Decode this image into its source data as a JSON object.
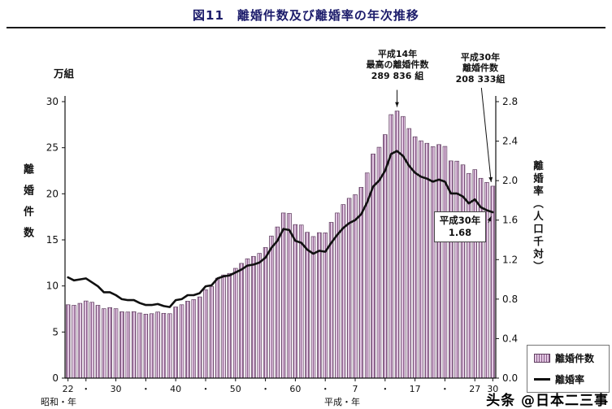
{
  "title": "図11　離婚件数及び離婚率の年次推移",
  "watermark": "头条 @日本二三事",
  "axes": {
    "left_unit": "万組",
    "left_title": "離婚件数",
    "right_title": "離婚率（人口千対）",
    "era_left": "昭和・年",
    "era_right": "平成・年"
  },
  "annotations": {
    "peak": "平成14年\n最高の離婚件数\n289 836 組",
    "latest_count": "平成30年\n離婚件数\n208 333組",
    "latest_rate": "平成30年\n1.68"
  },
  "legend": {
    "bars": "離婚件数",
    "line": "離婚率"
  },
  "colors": {
    "bar_fill": "#e2c8e2",
    "bar_stripe": "#8d5f8d",
    "bar_stroke": "#5f3f5f",
    "line": "#101010",
    "title": "#1c1c6b"
  },
  "chart_data": {
    "type": "bar+line",
    "title": "図11　離婚件数及び離婚率の年次推移",
    "year_start": 1947,
    "year_end": 2018,
    "grid": false,
    "legend_position": "right-bottom",
    "left_axis": {
      "label": "離婚件数（万組）",
      "min": 0,
      "max": 30,
      "tick_step": 5
    },
    "right_axis": {
      "label": "離婚率（人口千対）",
      "min": 0,
      "max": 2.8,
      "tick_step": 0.4
    },
    "x_ticks": [
      {
        "index": 0,
        "label": "22"
      },
      {
        "index": 3,
        "label": "・"
      },
      {
        "index": 8,
        "label": "30"
      },
      {
        "index": 13,
        "label": "・"
      },
      {
        "index": 18,
        "label": "40"
      },
      {
        "index": 23,
        "label": "・"
      },
      {
        "index": 28,
        "label": "50"
      },
      {
        "index": 33,
        "label": "・"
      },
      {
        "index": 38,
        "label": "60"
      },
      {
        "index": 43,
        "label": "・"
      },
      {
        "index": 48,
        "label": "7"
      },
      {
        "index": 53,
        "label": "・"
      },
      {
        "index": 58,
        "label": "17"
      },
      {
        "index": 63,
        "label": "・"
      },
      {
        "index": 68,
        "label": "27"
      },
      {
        "index": 71,
        "label": "30"
      }
    ],
    "bar_series": {
      "name": "離婚件数",
      "unit": "万組",
      "values": [
        7.96,
        7.9,
        8.11,
        8.37,
        8.23,
        7.9,
        7.53,
        7.65,
        7.53,
        7.2,
        7.17,
        7.21,
        7.06,
        6.94,
        6.99,
        7.17,
        7.03,
        6.99,
        7.72,
        7.96,
        8.35,
        8.52,
        8.81,
        9.59,
        9.95,
        10.84,
        11.19,
        11.36,
        11.91,
        12.45,
        12.95,
        13.21,
        13.53,
        14.17,
        15.42,
        16.4,
        17.92,
        17.87,
        16.66,
        16.61,
        15.82,
        15.36,
        15.78,
        15.76,
        16.9,
        17.92,
        18.83,
        19.51,
        19.9,
        20.7,
        22.26,
        24.32,
        25.05,
        26.42,
        28.59,
        28.98,
        28.39,
        27.08,
        26.19,
        25.75,
        25.48,
        25.11,
        25.34,
        25.14,
        23.57,
        23.54,
        23.14,
        22.21,
        22.62,
        21.68,
        21.23,
        20.83
      ]
    },
    "line_series": {
      "name": "離婚率",
      "unit": "人口千対",
      "values": [
        1.02,
        0.99,
        1.0,
        1.01,
        0.97,
        0.93,
        0.87,
        0.87,
        0.84,
        0.8,
        0.79,
        0.79,
        0.76,
        0.74,
        0.74,
        0.75,
        0.73,
        0.72,
        0.79,
        0.8,
        0.84,
        0.84,
        0.86,
        0.93,
        0.94,
        1.01,
        1.03,
        1.04,
        1.07,
        1.1,
        1.14,
        1.15,
        1.17,
        1.22,
        1.32,
        1.39,
        1.51,
        1.5,
        1.39,
        1.37,
        1.3,
        1.26,
        1.29,
        1.28,
        1.37,
        1.45,
        1.52,
        1.57,
        1.6,
        1.66,
        1.78,
        1.94,
        2.0,
        2.1,
        2.27,
        2.3,
        2.25,
        2.15,
        2.08,
        2.04,
        2.02,
        1.99,
        2.01,
        1.99,
        1.87,
        1.87,
        1.84,
        1.77,
        1.81,
        1.73,
        1.7,
        1.68
      ]
    }
  }
}
